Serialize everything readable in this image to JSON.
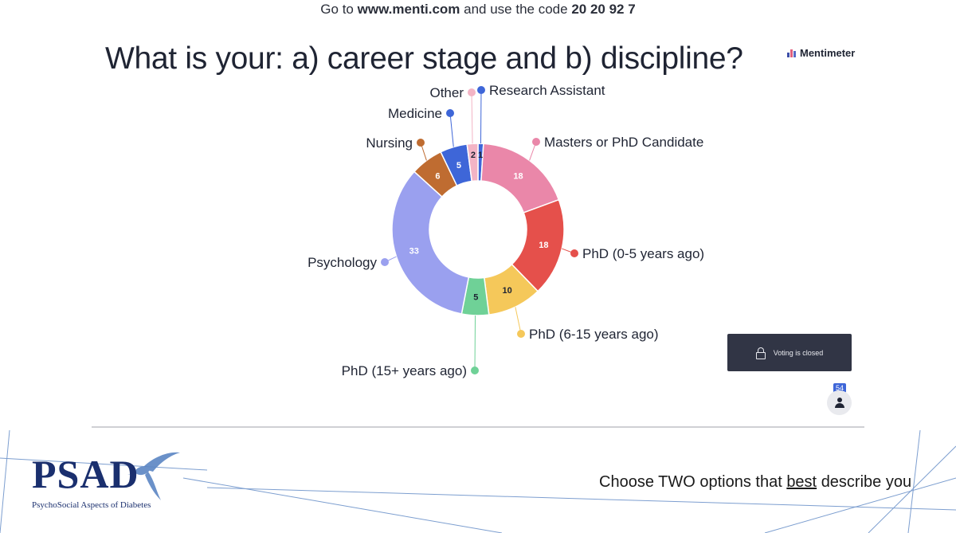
{
  "banner": {
    "prefix": "Go to",
    "url": "www.menti.com",
    "middle": "and use the code",
    "code": "20 20 92 7"
  },
  "question": "What is your: a) career stage and b) discipline?",
  "brand": "Mentimeter",
  "voting_status": "Voting is closed",
  "audience_count": "54",
  "logo": {
    "text": "PSAD",
    "subtitle": "PsychoSocial Aspects of Diabetes"
  },
  "caption": {
    "before": "Choose TWO options that",
    "emphasis": "best",
    "after": "describe you"
  },
  "chart_data": {
    "type": "pie",
    "variant": "donut",
    "title": "What is your: a) career stage and b) discipline?",
    "categories": [
      "Research Assistant",
      "Masters or PhD Candidate",
      "PhD (0-5 years ago)",
      "PhD (6-15 years ago)",
      "PhD (15+ years ago)",
      "Psychology",
      "Nursing",
      "Medicine",
      "Other"
    ],
    "values": [
      1,
      18,
      18,
      10,
      5,
      33,
      6,
      5,
      2
    ],
    "colors": [
      "#3e66d8",
      "#ea87a9",
      "#e5504b",
      "#f5c85a",
      "#6fd197",
      "#9aa0ef",
      "#bf6c31",
      "#3e66d8",
      "#f3b4c5"
    ],
    "legend": "leader-line labels around the ring",
    "direction": "clockwise from top"
  }
}
